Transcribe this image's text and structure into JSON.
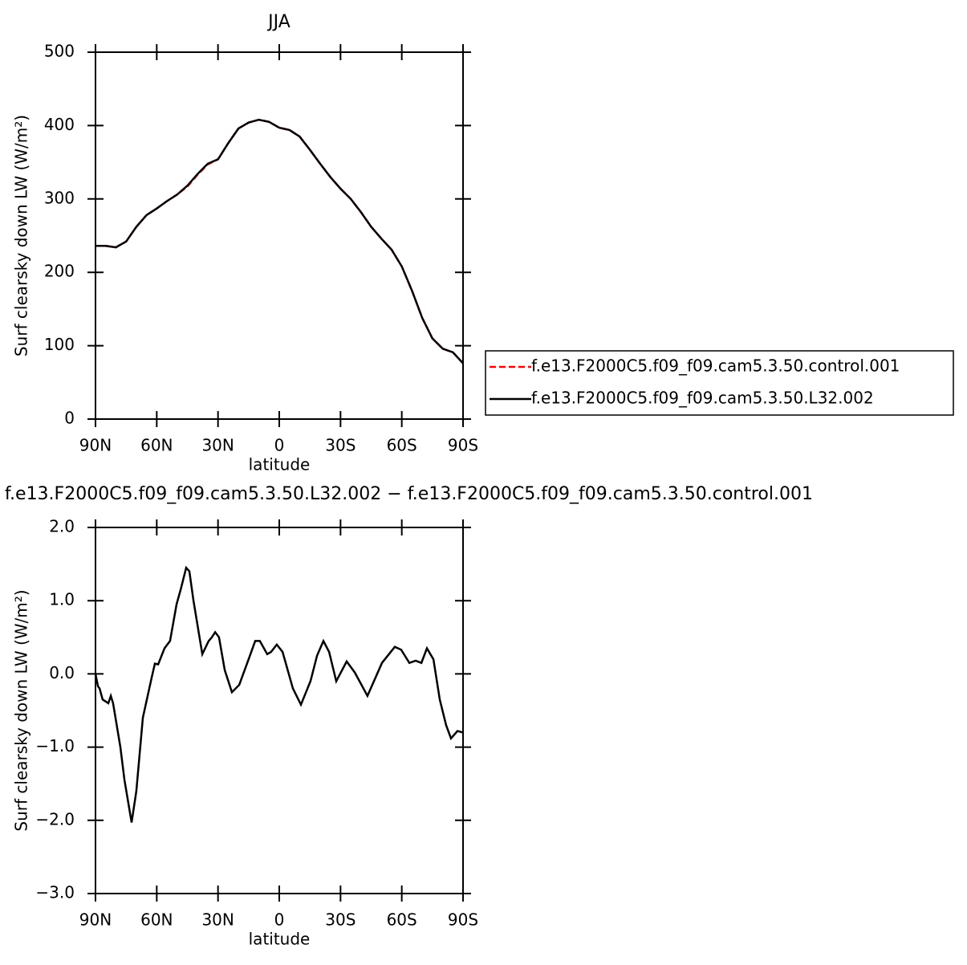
{
  "chart_data": [
    {
      "type": "line",
      "title": "JJA",
      "xlabel": "latitude",
      "ylabel": "Surf clearsky down LW (W/m²)",
      "x": [
        90,
        85,
        80,
        75,
        70,
        65,
        60,
        55,
        50,
        45,
        40,
        35,
        30,
        25,
        20,
        15,
        10,
        5,
        0,
        -5,
        -10,
        -15,
        -20,
        -25,
        -30,
        -35,
        -40,
        -45,
        -50,
        -55,
        -60,
        -65,
        -70,
        -75,
        -80,
        -85,
        -90
      ],
      "series": [
        {
          "name": "f.e13.F2000C5.f09_f09.cam5.3.50.control.001",
          "color": "#ff0000",
          "dash": true,
          "values": [
            236,
            236,
            234,
            242,
            262,
            278,
            287,
            297,
            306,
            317,
            333,
            347,
            354,
            376,
            396,
            404,
            408,
            405,
            397,
            394,
            385,
            367,
            348,
            330,
            314,
            300,
            282,
            262,
            246,
            231,
            208,
            175,
            138,
            110,
            96,
            91,
            76
          ]
        },
        {
          "name": "f.e13.F2000C5.f09_f09.cam5.3.50.L32.002",
          "color": "#000000",
          "dash": false,
          "values": [
            236,
            236,
            234,
            242,
            262,
            278,
            287,
            297,
            306,
            318,
            334,
            348,
            354,
            376,
            396,
            404,
            408,
            405,
            397,
            394,
            385,
            367,
            348,
            330,
            314,
            300,
            282,
            262,
            246,
            231,
            208,
            175,
            138,
            110,
            96,
            91,
            76
          ]
        }
      ],
      "xlim": [
        90,
        -90
      ],
      "xticks": [
        {
          "value": 90,
          "label": "90N"
        },
        {
          "value": 60,
          "label": "60N"
        },
        {
          "value": 30,
          "label": "30N"
        },
        0,
        {
          "value": -30,
          "label": "30S"
        },
        {
          "value": -60,
          "label": "60S"
        },
        {
          "value": -90,
          "label": "90S"
        }
      ],
      "ylim": [
        0,
        500
      ],
      "yticks": [
        0,
        100,
        200,
        300,
        400,
        500
      ],
      "legend": "right"
    },
    {
      "type": "line",
      "title": "f.e13.F2000C5.f09_f09.cam5.3.50.L32.002 − f.e13.F2000C5.f09_f09.cam5.3.50.control.001",
      "xlabel": "latitude",
      "ylabel": "Surf clearsky down LW (W/m²)",
      "x": [
        90,
        88.8,
        88,
        86.5,
        83.7,
        82.5,
        81.4,
        77.8,
        75.8,
        72.3,
        70,
        66.8,
        62.5,
        60.9,
        59.3,
        56.2,
        53.5,
        50.3,
        48.3,
        45.6,
        44,
        42,
        37.7,
        34.6,
        33,
        31.4,
        29.5,
        26.7,
        23.2,
        19.6,
        15,
        11.8,
        9.5,
        5.9,
        4,
        1.2,
        -1.6,
        -6.7,
        -10.6,
        -15.3,
        -18.5,
        -21.6,
        -24.4,
        -27.9,
        -33,
        -37,
        -43.2,
        -50.3,
        -56.6,
        -59.7,
        -63.7,
        -66.8,
        -69.6,
        -72.3,
        -75.5,
        -78.6,
        -81.7,
        -84.1,
        -87.3,
        -90
      ],
      "series": [
        {
          "name": "f.e13.F2000C5.f09_f09.cam5.3.50.L32.002",
          "color": "#000000",
          "dash": false,
          "values": [
            0.0,
            -0.17,
            -0.2,
            -0.35,
            -0.4,
            -0.3,
            -0.4,
            -1.0,
            -1.45,
            -2.03,
            -1.6,
            -0.6,
            -0.05,
            0.14,
            0.13,
            0.35,
            0.45,
            0.95,
            1.15,
            1.45,
            1.4,
            1.0,
            0.27,
            0.45,
            0.5,
            0.57,
            0.5,
            0.05,
            -0.25,
            -0.15,
            0.2,
            0.45,
            0.45,
            0.27,
            0.3,
            0.4,
            0.3,
            -0.2,
            -0.42,
            -0.1,
            0.25,
            0.45,
            0.3,
            -0.1,
            0.17,
            0.02,
            -0.3,
            0.15,
            0.37,
            0.33,
            0.15,
            0.18,
            0.15,
            0.35,
            0.2,
            -0.35,
            -0.7,
            -0.88,
            -0.78,
            -0.8
          ]
        }
      ],
      "xlim": [
        90,
        -90
      ],
      "xticks": [
        {
          "value": 90,
          "label": "90N"
        },
        {
          "value": 60,
          "label": "60N"
        },
        {
          "value": 30,
          "label": "30N"
        },
        0,
        {
          "value": -30,
          "label": "30S"
        },
        {
          "value": -60,
          "label": "60S"
        },
        {
          "value": -90,
          "label": "90S"
        }
      ],
      "ylim": [
        -3,
        2
      ],
      "yticks": [
        {
          "value": -3,
          "label": "−3.0"
        },
        {
          "value": -2,
          "label": "−2.0"
        },
        {
          "value": -1,
          "label": "−1.0"
        },
        {
          "value": 0,
          "label": "0.0"
        },
        {
          "value": 1,
          "label": "1.0"
        },
        {
          "value": 2,
          "label": "2.0"
        }
      ]
    }
  ]
}
